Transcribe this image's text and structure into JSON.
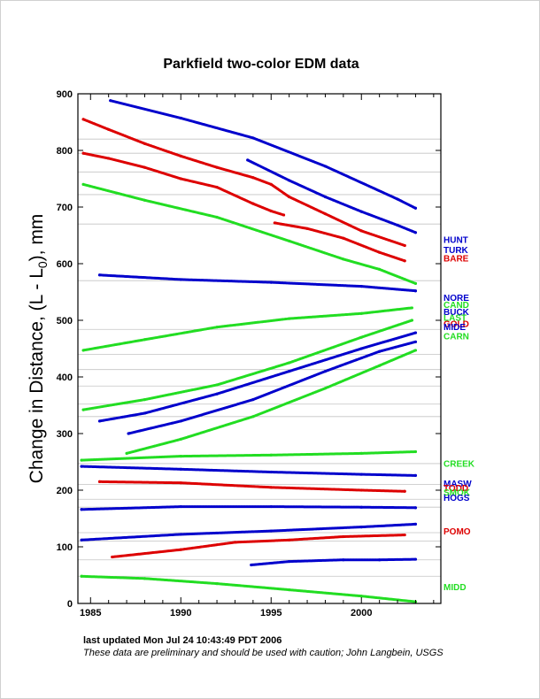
{
  "chart_data": {
    "type": "scatter",
    "title": "Parkfield two-color EDM data",
    "ylabel": "Change in Distance, (L - L",
    "ylabel_sub": "0",
    "ylabel_tail": "),  mm",
    "xlim": [
      1984.3,
      2004.4
    ],
    "ylim": [
      0,
      900
    ],
    "x_ticks": [
      1985,
      1990,
      1995,
      2000
    ],
    "y_ticks": [
      0,
      100,
      200,
      300,
      400,
      500,
      600,
      700,
      800,
      900
    ],
    "footer_line1": "last updated Mon Jul 24 10:43:49 PDT 2006",
    "footer_line2": "These data are preliminary and should be used with caution;  John Langbein, USGS",
    "colors": {
      "blue": "#0000cc",
      "red": "#dd0000",
      "green": "#22dd22"
    },
    "site_labels": [
      {
        "text": "HUNT",
        "color": "blue",
        "y": 642
      },
      {
        "text": "TURK",
        "color": "blue",
        "y": 624
      },
      {
        "text": "BARE",
        "color": "red",
        "y": 609
      },
      {
        "text": "NORE",
        "color": "blue",
        "y": 540
      },
      {
        "text": "CAND",
        "color": "green",
        "y": 527
      },
      {
        "text": "BUCK",
        "color": "blue",
        "y": 515
      },
      {
        "text": "LAST",
        "color": "green",
        "y": 505
      },
      {
        "text": "GOLD",
        "color": "red",
        "y": 494
      },
      {
        "text": "MIDE",
        "color": "blue",
        "y": 488
      },
      {
        "text": "CARN",
        "color": "green",
        "y": 472
      },
      {
        "text": "CREEK",
        "color": "green",
        "y": 247
      },
      {
        "text": "MASW",
        "color": "blue",
        "y": 212
      },
      {
        "text": "TODD",
        "color": "red",
        "y": 204
      },
      {
        "text": "SMOK",
        "color": "green",
        "y": 196
      },
      {
        "text": "HOGS",
        "color": "blue",
        "y": 187
      },
      {
        "text": "POMO",
        "color": "red",
        "y": 127
      },
      {
        "text": "MIDD",
        "color": "green",
        "y": 29
      }
    ],
    "series": [
      {
        "color": "blue",
        "x_start": 1986.1,
        "x_end": 2003.0,
        "points": [
          [
            1986.1,
            888
          ],
          [
            1990,
            857
          ],
          [
            1994,
            822
          ],
          [
            1998,
            772
          ],
          [
            2002,
            714
          ],
          [
            2003.0,
            698
          ]
        ]
      },
      {
        "color": "blue",
        "x_start": 1993.7,
        "x_end": 2003.0,
        "points": [
          [
            1993.7,
            783
          ],
          [
            1996,
            747
          ],
          [
            1998,
            718
          ],
          [
            2000,
            692
          ],
          [
            2002,
            668
          ],
          [
            2003.0,
            655
          ]
        ]
      },
      {
        "color": "blue",
        "x_start": 1985.5,
        "x_end": 2003.0,
        "points": [
          [
            1985.5,
            580
          ],
          [
            1990,
            572
          ],
          [
            1995,
            567
          ],
          [
            2000,
            560
          ],
          [
            2003.0,
            552
          ]
        ]
      },
      {
        "color": "blue",
        "x_start": 1985.5,
        "x_end": 2003.0,
        "points": [
          [
            1985.5,
            322
          ],
          [
            1988,
            336
          ],
          [
            1992,
            370
          ],
          [
            1996,
            410
          ],
          [
            2000,
            450
          ],
          [
            2003.0,
            478
          ]
        ]
      },
      {
        "color": "blue",
        "x_start": 1987.1,
        "x_end": 2003.0,
        "points": [
          [
            1987.1,
            300
          ],
          [
            1990,
            322
          ],
          [
            1994,
            360
          ],
          [
            1998,
            410
          ],
          [
            2001,
            445
          ],
          [
            2003.0,
            462
          ]
        ]
      },
      {
        "color": "blue",
        "x_start": 1984.5,
        "x_end": 2003.0,
        "points": [
          [
            1984.5,
            242
          ],
          [
            1990,
            237
          ],
          [
            1995,
            232
          ],
          [
            2000,
            228
          ],
          [
            2003.0,
            226
          ]
        ]
      },
      {
        "color": "blue",
        "x_start": 1984.5,
        "x_end": 2003.0,
        "points": [
          [
            1984.5,
            166
          ],
          [
            1990,
            171
          ],
          [
            1995,
            171
          ],
          [
            2000,
            170
          ],
          [
            2003.0,
            169
          ]
        ]
      },
      {
        "color": "blue",
        "x_start": 1984.5,
        "x_end": 2003.0,
        "points": [
          [
            1984.5,
            112
          ],
          [
            1990,
            122
          ],
          [
            1995,
            128
          ],
          [
            2000,
            135
          ],
          [
            2003.0,
            140
          ]
        ]
      },
      {
        "color": "blue",
        "x_start": 1993.9,
        "x_end": 2003.0,
        "points": [
          [
            1993.9,
            68
          ],
          [
            1996,
            74
          ],
          [
            1999,
            77
          ],
          [
            2001,
            77
          ],
          [
            2003.0,
            78
          ]
        ]
      },
      {
        "color": "red",
        "x_start": 1984.6,
        "x_end": 2002.4,
        "points": [
          [
            1984.6,
            855
          ],
          [
            1986,
            837
          ],
          [
            1988,
            812
          ],
          [
            1990,
            790
          ],
          [
            1992,
            770
          ],
          [
            1994,
            752
          ],
          [
            1995,
            740
          ],
          [
            1996,
            718
          ],
          [
            1998,
            688
          ],
          [
            2000,
            658
          ],
          [
            2002.4,
            632
          ]
        ]
      },
      {
        "color": "red",
        "x_start": 1984.6,
        "x_end": 1995.7,
        "points": [
          [
            1984.6,
            795
          ],
          [
            1986,
            786
          ],
          [
            1988,
            770
          ],
          [
            1990,
            750
          ],
          [
            1992,
            735
          ],
          [
            1994,
            706
          ],
          [
            1995,
            693
          ],
          [
            1995.7,
            686
          ]
        ]
      },
      {
        "color": "red",
        "x_start": 1995.2,
        "x_end": 2002.4,
        "points": [
          [
            1995.2,
            672
          ],
          [
            1997,
            662
          ],
          [
            1999,
            645
          ],
          [
            2001,
            620
          ],
          [
            2002.4,
            605
          ]
        ]
      },
      {
        "color": "red",
        "x_start": 1985.5,
        "x_end": 2002.4,
        "points": [
          [
            1985.5,
            215
          ],
          [
            1990,
            213
          ],
          [
            1995,
            205
          ],
          [
            2000,
            200
          ],
          [
            2002.4,
            198
          ]
        ]
      },
      {
        "color": "red",
        "x_start": 1986.2,
        "x_end": 2002.4,
        "points": [
          [
            1986.2,
            82
          ],
          [
            1990,
            95
          ],
          [
            1993,
            108
          ],
          [
            1996,
            112
          ],
          [
            1999,
            118
          ],
          [
            2002.4,
            121
          ]
        ]
      },
      {
        "color": "green",
        "x_start": 1984.6,
        "x_end": 2003.0,
        "points": [
          [
            1984.6,
            740
          ],
          [
            1988,
            712
          ],
          [
            1992,
            682
          ],
          [
            1996,
            640
          ],
          [
            1999,
            608
          ],
          [
            2001,
            590
          ],
          [
            2003.0,
            565
          ]
        ]
      },
      {
        "color": "green",
        "x_start": 1984.6,
        "x_end": 2002.8,
        "points": [
          [
            1984.6,
            447
          ],
          [
            1988,
            466
          ],
          [
            1992,
            488
          ],
          [
            1996,
            503
          ],
          [
            2000,
            512
          ],
          [
            2002.8,
            522
          ]
        ]
      },
      {
        "color": "green",
        "x_start": 1984.6,
        "x_end": 2002.8,
        "points": [
          [
            1984.6,
            342
          ],
          [
            1988,
            360
          ],
          [
            1992,
            386
          ],
          [
            1996,
            425
          ],
          [
            2000,
            470
          ],
          [
            2002.8,
            500
          ]
        ]
      },
      {
        "color": "green",
        "x_start": 1987.0,
        "x_end": 2003.0,
        "points": [
          [
            1987.0,
            265
          ],
          [
            1990,
            290
          ],
          [
            1994,
            330
          ],
          [
            1998,
            380
          ],
          [
            2001,
            420
          ],
          [
            2003.0,
            447
          ]
        ]
      },
      {
        "color": "green",
        "x_start": 1984.5,
        "x_end": 2003.0,
        "points": [
          [
            1984.5,
            253
          ],
          [
            1990,
            260
          ],
          [
            1995,
            262
          ],
          [
            2000,
            265
          ],
          [
            2003.0,
            268
          ]
        ]
      },
      {
        "color": "green",
        "x_start": 1984.5,
        "x_end": 2003.0,
        "points": [
          [
            1984.5,
            48
          ],
          [
            1988,
            44
          ],
          [
            1992,
            35
          ],
          [
            1996,
            24
          ],
          [
            2000,
            13
          ],
          [
            2003.0,
            3
          ]
        ]
      }
    ]
  }
}
